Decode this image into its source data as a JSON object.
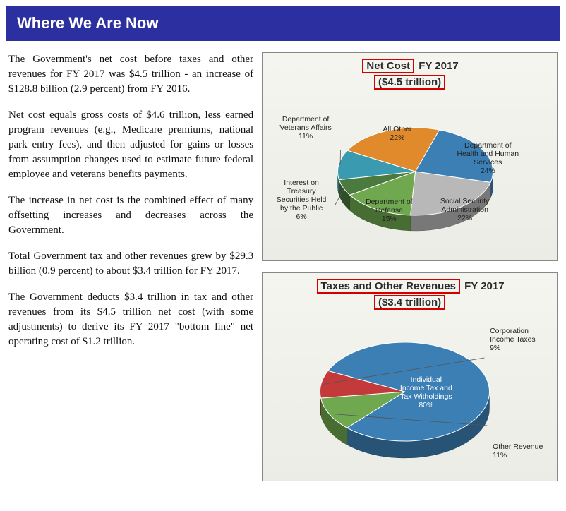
{
  "header": {
    "title": "Where We Are Now"
  },
  "paragraphs": {
    "p1": "The Government's net cost before taxes and other revenues for FY 2017 was $4.5 trillion - an increase of $128.8 billion (2.9 percent) from FY 2016.",
    "p2": "Net cost equals gross costs of $4.6 trillion, less earned program revenues (e.g., Medicare premiums, national park entry fees), and then adjusted for gains or losses from assumption changes used to estimate future federal employee and veterans benefits payments.",
    "p3": "The increase in net cost is the combined effect of many offsetting increases and decreases across the Government.",
    "p4": "Total Government tax and other revenues grew by $29.3 billion (0.9 percent) to about $3.4 trillion for FY 2017.",
    "p5": "The Government deducts $3.4 trillion in tax and other revenues from its $4.5 trillion net cost (with some adjustments) to derive its FY 2017 \"bottom line\" net operating cost of $1.2 trillion."
  },
  "chart1": {
    "type": "pie",
    "title_hl": "Net Cost",
    "title_rest": " FY 2017",
    "subtitle": "($4.5 trillion)",
    "background": "#f0f0ea",
    "slices": [
      {
        "label": "Department of Health and Human Services",
        "pct": 24,
        "color": "#3b7fb5"
      },
      {
        "label": "Social Security Administration",
        "pct": 22,
        "color": "#b8b8b8"
      },
      {
        "label": "Department of Defense",
        "pct": 15,
        "color": "#6fa84f"
      },
      {
        "label": "Interest on Treasury Securities Held by the Public",
        "pct": 6,
        "color": "#4a7a3d"
      },
      {
        "label": "Department of Veterans Affairs",
        "pct": 11,
        "color": "#3a9bb0"
      },
      {
        "label": "All Other",
        "pct": 22,
        "color": "#e08a2c"
      }
    ]
  },
  "chart2": {
    "type": "pie",
    "title_hl": "Taxes and Other Revenues",
    "title_rest": " FY 2017",
    "subtitle": "($3.4 trillion)",
    "background": "#f0f0ea",
    "slices": [
      {
        "label": "Individual Income Tax and Tax Witholdings",
        "pct": 80,
        "color": "#3b7fb5"
      },
      {
        "label": "Other Revenue",
        "pct": 11,
        "color": "#6fa84f"
      },
      {
        "label": "Corporation Income Taxes",
        "pct": 9,
        "color": "#c43a3a"
      }
    ]
  }
}
